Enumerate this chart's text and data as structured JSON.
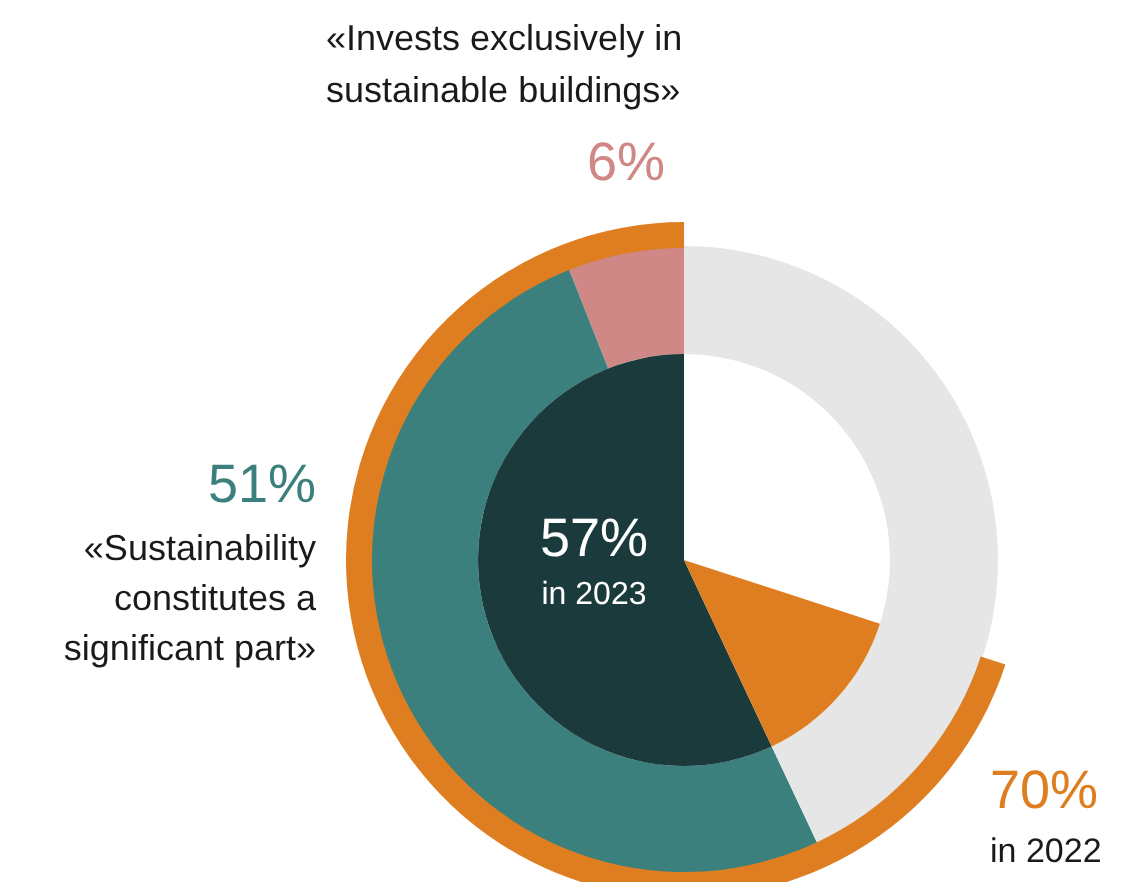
{
  "chart_data": {
    "type": "donut",
    "categories": [
      "«Invests exclusively in sustainable buildings»",
      "«Sustainability constitutes a significant part»",
      null
    ],
    "series": [
      {
        "values": [
          6,
          51,
          43
        ],
        "colors": [
          "#cf8886",
          "#3b807d",
          "#e6e6e6"
        ],
        "value_labels": [
          "6%",
          "51%",
          null
        ]
      },
      {
        "type": "pie",
        "name": "in 2023",
        "values": [
          57,
          13,
          null
        ],
        "colors": [
          "#1b3a3b",
          "#df7e20",
          null
        ],
        "value_labels": [
          "57%",
          null,
          null
        ]
      },
      {
        "name": "in 2022",
        "values": [
          70,
          null,
          null
        ],
        "colors": [
          "#df7e20",
          null,
          null
        ],
        "value_labels": [
          "70%",
          null,
          null
        ]
      }
    ]
  }
}
